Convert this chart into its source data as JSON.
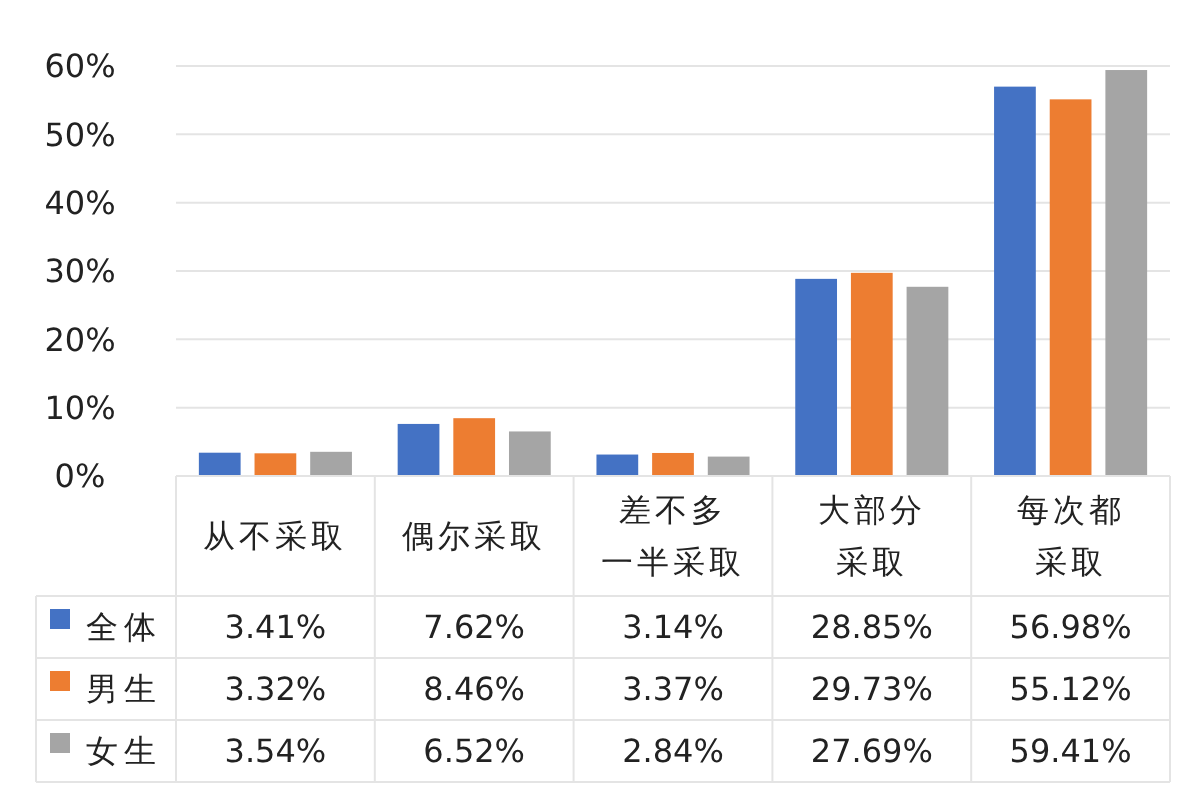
{
  "chart_data": {
    "type": "bar",
    "categories": [
      "从不采取",
      "偶尔采取",
      "差不多一半采取",
      "大部分采取",
      "每次都采取"
    ],
    "series": [
      {
        "name": "全体",
        "color": "#4472c4",
        "values": [
          3.41,
          7.62,
          3.14,
          28.85,
          56.98
        ],
        "value_labels": [
          "3.41%",
          "7.62%",
          "3.14%",
          "28.85%",
          "56.98%"
        ]
      },
      {
        "name": "男生",
        "color": "#ed7d31",
        "values": [
          3.32,
          8.46,
          3.37,
          29.73,
          55.12
        ],
        "value_labels": [
          "3.32%",
          "8.46%",
          "3.37%",
          "29.73%",
          "55.12%"
        ]
      },
      {
        "name": "女生",
        "color": "#a5a5a5",
        "values": [
          3.54,
          6.52,
          2.84,
          27.69,
          59.41
        ],
        "value_labels": [
          "3.54%",
          "6.52%",
          "2.84%",
          "27.69%",
          "59.41%"
        ]
      }
    ],
    "ylim": [
      0,
      60
    ],
    "yticks": [
      {
        "value": 0,
        "label": "0%"
      },
      {
        "value": 10,
        "label": "10%"
      },
      {
        "value": 20,
        "label": "20%"
      },
      {
        "value": 30,
        "label": "30%"
      },
      {
        "value": 40,
        "label": "40%"
      },
      {
        "value": 50,
        "label": "50%"
      },
      {
        "value": 60,
        "label": "60%"
      }
    ],
    "grid": "y",
    "legend": "bottom"
  }
}
